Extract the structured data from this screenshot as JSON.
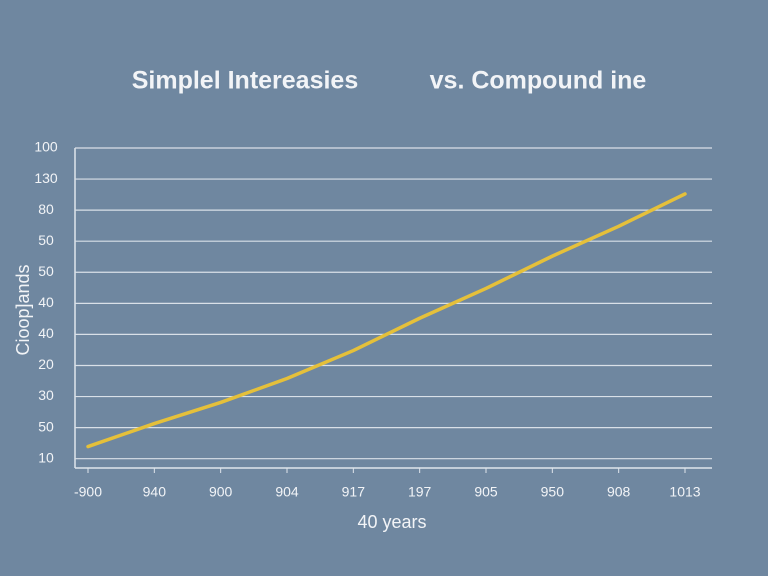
{
  "chart_data": {
    "type": "line",
    "title": [
      "Simplel Intereasies",
      "vs. Compound ine"
    ],
    "x_label": "40 years",
    "y_label": "Cioop]ands",
    "categories": [
      "-900",
      "940",
      "900",
      "904",
      "917",
      "197",
      "905",
      "950",
      "908",
      "1013"
    ],
    "series": [
      {
        "color": "#e5c03a",
        "values": [
          0.39,
          1.13,
          1.81,
          2.58,
          3.48,
          4.52,
          5.48,
          6.52,
          7.48,
          8.52
        ]
      }
    ],
    "ylim": [
      -0.3,
      10
    ],
    "yticks": [
      {
        "value": 0,
        "label": "10"
      },
      {
        "value": 1,
        "label": "50"
      },
      {
        "value": 2,
        "label": "30"
      },
      {
        "value": 3,
        "label": "20"
      },
      {
        "value": 4,
        "label": "40"
      },
      {
        "value": 5,
        "label": "40"
      },
      {
        "value": 6,
        "label": "50"
      },
      {
        "value": 7,
        "label": "50"
      },
      {
        "value": 8,
        "label": "80"
      },
      {
        "value": 9,
        "label": "130"
      },
      {
        "value": 10,
        "label": "100"
      }
    ],
    "grid": true
  }
}
